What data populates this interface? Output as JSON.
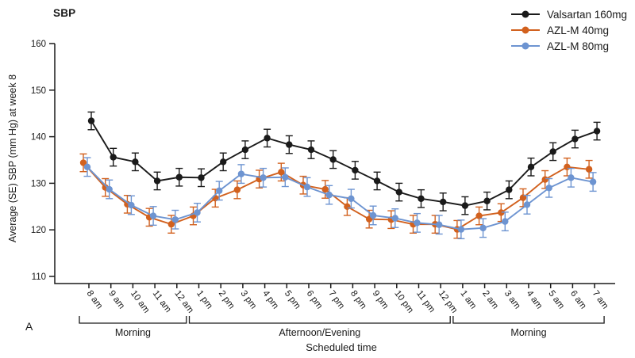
{
  "title": "SBP",
  "panel_label": "A",
  "y_axis": {
    "label": "Average (SE) SBP (mm Hg) at week 8",
    "min": 110,
    "max": 160,
    "ticks": [
      110,
      120,
      130,
      140,
      150,
      160
    ]
  },
  "x_axis": {
    "label": "Scheduled time"
  },
  "chart_data": {
    "type": "line",
    "title": "SBP",
    "xlabel": "Scheduled time",
    "ylabel": "Average (SE) SBP (mm Hg) at week 8",
    "ylim": [
      110,
      160
    ],
    "grid": false,
    "legend_position": "top-right",
    "error_bars": "SE",
    "categories": [
      "8 am",
      "9 am",
      "10 am",
      "11 am",
      "12 am",
      "1 pm",
      "2 pm",
      "3 pm",
      "4 pm",
      "5 pm",
      "6 pm",
      "7 pm",
      "8 pm",
      "9 pm",
      "10 pm",
      "11 pm",
      "12 pm",
      "1 am",
      "2 am",
      "3 am",
      "4 am",
      "5 am",
      "6 am",
      "7 am"
    ],
    "series": [
      {
        "name": "Valsartan 160mg",
        "color": "#1a1a1a",
        "se": 1.9,
        "values": [
          143.4,
          135.6,
          134.6,
          130.5,
          131.3,
          131.2,
          134.6,
          137.2,
          139.7,
          138.3,
          137.2,
          135.1,
          132.8,
          130.5,
          128.1,
          126.7,
          126.0,
          125.2,
          126.2,
          128.6,
          133.5,
          136.8,
          139.5,
          141.2
        ]
      },
      {
        "name": "AZL-M 40mg",
        "color": "#d2611e",
        "se": 1.9,
        "values": [
          134.4,
          129.1,
          125.5,
          122.7,
          121.2,
          123.0,
          126.8,
          128.6,
          130.9,
          132.4,
          129.6,
          128.7,
          125.0,
          122.3,
          122.2,
          121.2,
          121.2,
          120.1,
          123.0,
          123.7,
          126.9,
          130.8,
          133.5,
          133.0
        ]
      },
      {
        "name": "AZL-M 80mg",
        "color": "#6d94d1",
        "se": 2.0,
        "values": [
          133.5,
          128.7,
          125.3,
          123.0,
          122.2,
          123.7,
          128.4,
          132.0,
          131.2,
          131.3,
          129.2,
          127.5,
          126.7,
          123.1,
          122.5,
          121.5,
          121.1,
          120.1,
          120.4,
          121.8,
          125.4,
          129.0,
          131.2,
          130.3
        ]
      }
    ],
    "x_groups": [
      {
        "label": "Morning",
        "start": 0,
        "end": 4
      },
      {
        "label": "Afternoon/Evening",
        "start": 5,
        "end": 16
      },
      {
        "label": "Morning",
        "start": 17,
        "end": 23
      }
    ]
  }
}
